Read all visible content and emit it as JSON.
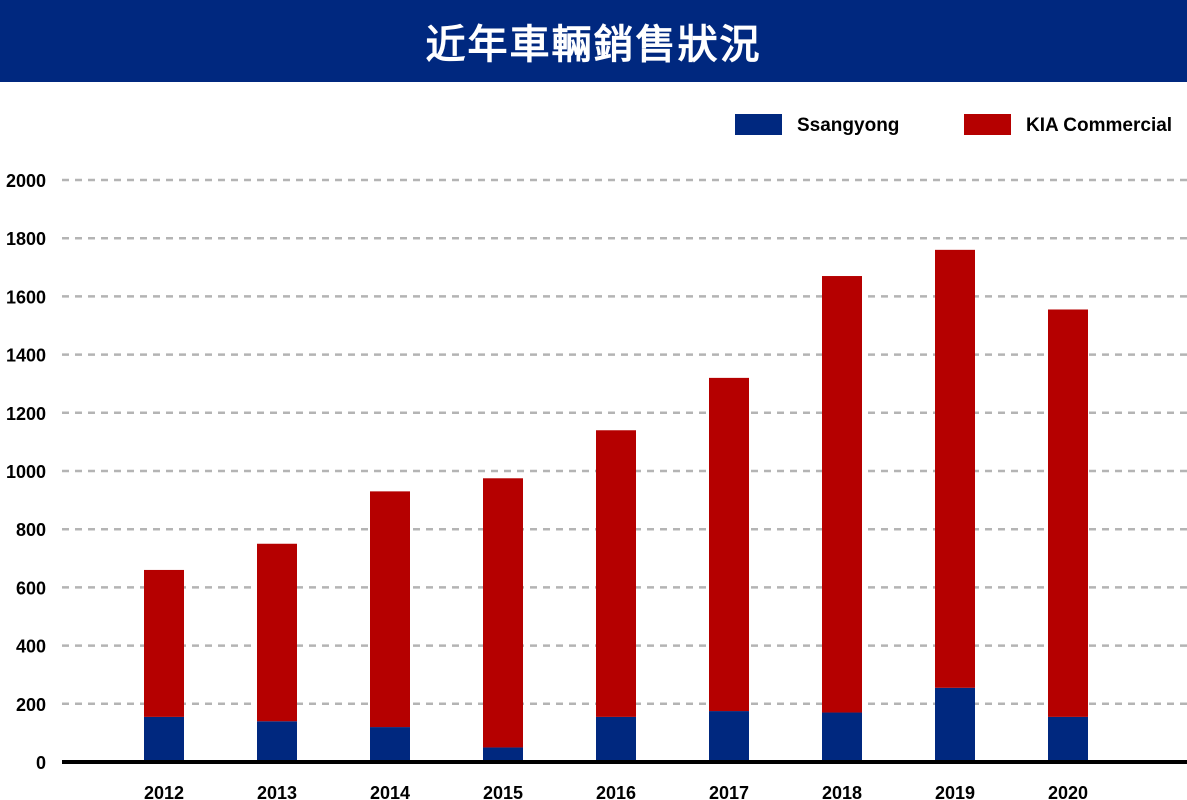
{
  "header": {
    "title": "近年車輛銷售狀況"
  },
  "colors": {
    "header_bg": "#00287f",
    "ssangyong": "#00287f",
    "kia": "#b50000",
    "grid": "#b4b4b4",
    "baseline": "#000000"
  },
  "chart_data": {
    "type": "bar",
    "stacked": true,
    "title": "近年車輛銷售狀況",
    "xlabel": "",
    "ylabel": "",
    "categories": [
      "2012",
      "2013",
      "2014",
      "2015",
      "2016",
      "2017",
      "2018",
      "2019",
      "2020"
    ],
    "series": [
      {
        "name": "Ssangyong",
        "color": "#00287f",
        "values": [
          155,
          140,
          120,
          50,
          155,
          175,
          170,
          255,
          155
        ]
      },
      {
        "name": "KIA Commercial",
        "color": "#b50000",
        "values": [
          505,
          610,
          810,
          925,
          985,
          1145,
          1500,
          1505,
          1400
        ]
      }
    ],
    "ylim": [
      0,
      2000
    ],
    "yticks": [
      0,
      200,
      400,
      600,
      800,
      1000,
      1200,
      1400,
      1600,
      1800,
      2000
    ],
    "grid": true,
    "grid_style": "dashed",
    "legend_position": "top-right"
  }
}
